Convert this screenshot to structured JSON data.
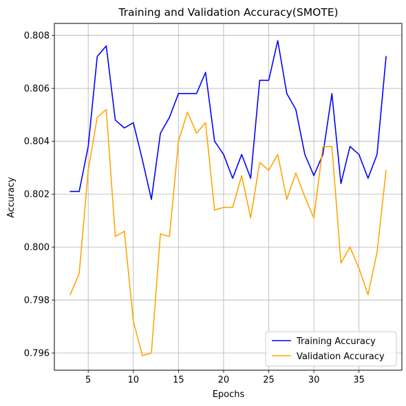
{
  "chart_data": {
    "type": "line",
    "title": "Training and Validation Accuracy(SMOTE)",
    "xlabel": "Epochs",
    "ylabel": "Accuracy",
    "xlim": [
      1.25,
      39.75
    ],
    "ylim": [
      0.79535,
      0.80845
    ],
    "xticks": [
      5,
      10,
      15,
      20,
      25,
      30,
      35
    ],
    "yticks": [
      0.796,
      0.798,
      0.8,
      0.802,
      0.804,
      0.806,
      0.808
    ],
    "ytick_labels": [
      "0.796",
      "0.798",
      "0.800",
      "0.802",
      "0.804",
      "0.806",
      "0.808"
    ],
    "grid": true,
    "legend_position": "lower-right",
    "x": [
      3,
      4,
      5,
      6,
      7,
      8,
      9,
      10,
      11,
      12,
      13,
      14,
      15,
      16,
      17,
      18,
      19,
      20,
      21,
      22,
      23,
      24,
      25,
      26,
      27,
      28,
      29,
      30,
      31,
      32,
      33,
      34,
      35,
      36,
      37,
      38
    ],
    "series": [
      {
        "name": "Training Accuracy",
        "color": "#0000ff",
        "values": [
          0.8021,
          0.8021,
          0.8038,
          0.8072,
          0.8076,
          0.8048,
          0.8045,
          0.8047,
          0.8033,
          0.8018,
          0.8043,
          0.8049,
          0.8058,
          0.8058,
          0.8058,
          0.8066,
          0.804,
          0.8035,
          0.8026,
          0.8035,
          0.8026,
          0.8063,
          0.8063,
          0.8078,
          0.8058,
          0.8052,
          0.8035,
          0.8027,
          0.8035,
          0.8058,
          0.8024,
          0.8038,
          0.8035,
          0.8026,
          0.8035,
          0.8072
        ]
      },
      {
        "name": "Validation Accuracy",
        "color": "#ffa500",
        "values": [
          0.7982,
          0.799,
          0.8029,
          0.8049,
          0.8052,
          0.8004,
          0.8006,
          0.7972,
          0.7959,
          0.796,
          0.8005,
          0.8004,
          0.804,
          0.8051,
          0.8043,
          0.8047,
          0.8014,
          0.8015,
          0.8015,
          0.8027,
          0.8011,
          0.8032,
          0.8029,
          0.8035,
          0.8018,
          0.8028,
          0.8019,
          0.8011,
          0.8038,
          0.8038,
          0.7994,
          0.8,
          0.7992,
          0.7982,
          0.7998,
          0.8029
        ]
      }
    ]
  }
}
